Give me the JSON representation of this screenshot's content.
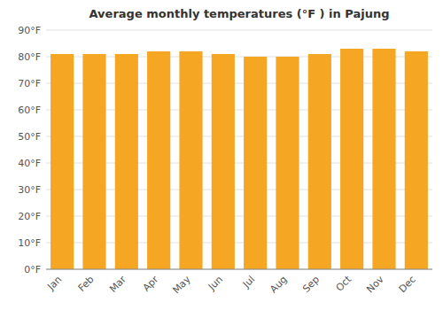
{
  "chart_data": {
    "type": "bar",
    "title": "Average monthly temperatures (°F ) in Pajung",
    "categories": [
      "Jan",
      "Feb",
      "Mar",
      "Apr",
      "May",
      "Jun",
      "Jul",
      "Aug",
      "Sep",
      "Oct",
      "Nov",
      "Dec"
    ],
    "values": [
      81,
      81,
      81,
      82,
      82,
      81,
      80,
      80,
      81,
      83,
      83,
      82
    ],
    "color": "#F5A623",
    "ylim": [
      0,
      90
    ],
    "yticks": [
      {
        "value": 0,
        "label": "0°F"
      },
      {
        "value": 10,
        "label": "10°F"
      },
      {
        "value": 20,
        "label": "20°F"
      },
      {
        "value": 30,
        "label": "30°F"
      },
      {
        "value": 40,
        "label": "40°F"
      },
      {
        "value": 50,
        "label": "50°F"
      },
      {
        "value": 60,
        "label": "60°F"
      },
      {
        "value": 70,
        "label": "70°F"
      },
      {
        "value": 80,
        "label": "80°F"
      },
      {
        "value": 90,
        "label": "90°F"
      }
    ],
    "grid": true
  }
}
